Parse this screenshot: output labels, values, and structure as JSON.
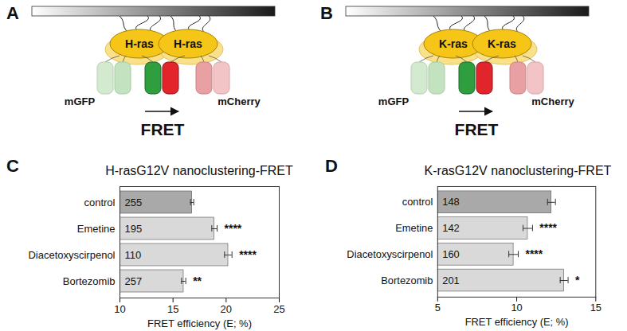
{
  "chart_data": [
    {
      "type": "bar",
      "panel": "C",
      "title": "H-rasG12V nanoclustering-FRET",
      "x_label": "FRET efficiency (E; %)",
      "orientation": "horizontal",
      "categories": [
        "control",
        "Emetine",
        "Diacetoxyscirpenol",
        "Bortezomib"
      ],
      "values": [
        16.8,
        18.9,
        20.2,
        16.0
      ],
      "errors": [
        0.15,
        0.25,
        0.35,
        0.2
      ],
      "n": [
        255,
        195,
        110,
        257
      ],
      "significance": [
        null,
        "****",
        "****",
        "**"
      ],
      "colors": [
        "#a9a9a9",
        "#d9d9d9",
        "#d9d9d9",
        "#d9d9d9"
      ],
      "xlim": [
        10,
        25
      ],
      "xticks": [
        10,
        15,
        20,
        25
      ]
    },
    {
      "type": "bar",
      "panel": "D",
      "title": "K-rasG12V nanoclustering-FRET",
      "x_label": "FRET efficiency (E; %)",
      "orientation": "horizontal",
      "categories": [
        "control",
        "Emetine",
        "Diacetoxyscirpenol",
        "Bortezomib"
      ],
      "values": [
        12.2,
        10.7,
        9.8,
        13.0
      ],
      "errors": [
        0.25,
        0.3,
        0.3,
        0.25
      ],
      "n": [
        148,
        142,
        160,
        201
      ],
      "significance": [
        null,
        "****",
        "****",
        "*"
      ],
      "colors": [
        "#a9a9a9",
        "#d9d9d9",
        "#d9d9d9",
        "#d9d9d9"
      ],
      "xlim": [
        5,
        15
      ],
      "xticks": [
        5,
        10,
        15
      ]
    }
  ],
  "diagrams": [
    {
      "panel": "A",
      "protein": "H-ras",
      "donor": "mGFP",
      "acceptor": "mCherry",
      "label": "FRET"
    },
    {
      "panel": "B",
      "protein": "K-ras",
      "donor": "mGFP",
      "acceptor": "mCherry",
      "label": "FRET"
    }
  ]
}
